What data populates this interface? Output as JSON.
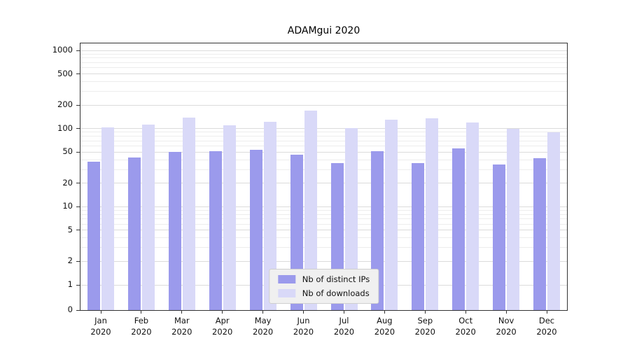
{
  "chart_data": {
    "type": "bar",
    "title": "ADAMgui 2020",
    "xlabel": "",
    "ylabel": "",
    "scale": "symlog",
    "grid": true,
    "legend_position": "bottom-center",
    "year": "2020",
    "categories": [
      "Jan",
      "Feb",
      "Mar",
      "Apr",
      "May",
      "Jun",
      "Jul",
      "Aug",
      "Sep",
      "Oct",
      "Nov",
      "Dec"
    ],
    "yticks": [
      0,
      1,
      2,
      5,
      10,
      20,
      50,
      100,
      200,
      500,
      1000
    ],
    "series": [
      {
        "name": "Nb of distinct IPs",
        "color": "#9b9aec",
        "values": [
          38,
          43,
          50,
          51,
          54,
          46,
          36,
          51,
          36,
          56,
          35,
          42
        ]
      },
      {
        "name": "Nb of downloads",
        "color": "#d9d9f8",
        "values": [
          103,
          113,
          137,
          110,
          122,
          170,
          101,
          130,
          136,
          120,
          100,
          90
        ]
      }
    ]
  }
}
